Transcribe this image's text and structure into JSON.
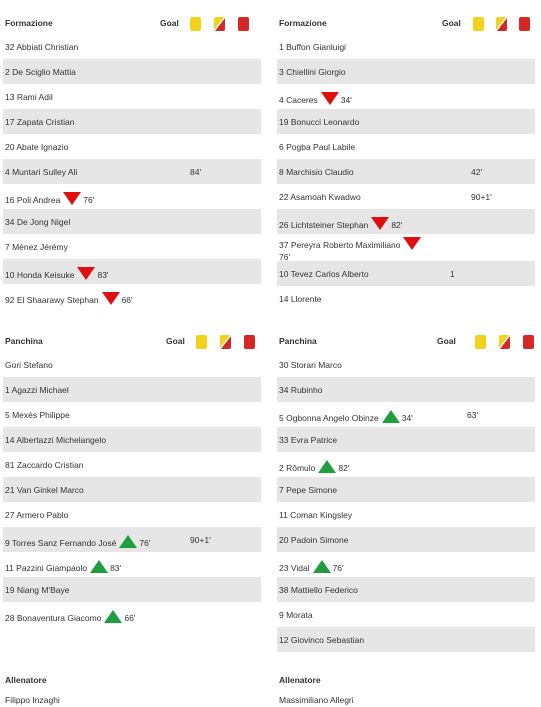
{
  "labels": {
    "formation": "Formazione",
    "bench": "Panchina",
    "goal": "Goal",
    "coach": "Allenatore"
  },
  "colors": {
    "yellow_card": "#f2d21b",
    "red_card": "#d62727",
    "sub_out": "#e00f0f",
    "sub_in": "#1e9e3e",
    "stripe": "#e6e6e6"
  },
  "icons": {
    "yellow_card": "yellow-card-icon",
    "second_yellow": "second-yellow-card-icon",
    "red_card": "red-card-icon",
    "sub_out": "substitution-out-icon",
    "sub_in": "substitution-in-icon"
  },
  "home": {
    "formation": [
      {
        "name": "32 Abbiati Christian"
      },
      {
        "name": "2 De Sciglio Mattia"
      },
      {
        "name": "13 Rami Adil"
      },
      {
        "name": "17 Zapata Cristian"
      },
      {
        "name": "20 Abate Ignazio"
      },
      {
        "name": "4 Muntari Sulley Ali",
        "yellow": "84'"
      },
      {
        "name": "16 Poli Andrea",
        "sub_out": "76'"
      },
      {
        "name": "34 De Jong Nigel"
      },
      {
        "name": "7 Ménez Jérémy"
      },
      {
        "name": "10 Honda Keisuke",
        "sub_out": "83'"
      },
      {
        "name": "92 El Shaarawy Stephan",
        "sub_out": "66'"
      }
    ],
    "bench": [
      {
        "name": "Gori Stefano"
      },
      {
        "name": "1 Agazzi Michael"
      },
      {
        "name": "5 Mexès Philippe"
      },
      {
        "name": "14 Albertazzi Michelangelo"
      },
      {
        "name": "81 Zaccardo Cristian"
      },
      {
        "name": "21 Van Ginkel Marco"
      },
      {
        "name": "27 Armero Pablo"
      },
      {
        "name": "9 Torres Sanz Fernando José",
        "sub_in": "76'",
        "yellow": "90+1'"
      },
      {
        "name": "11 Pazzini Giampaolo",
        "sub_in": "83'"
      },
      {
        "name": "19 Niang M'Baye"
      },
      {
        "name": "28 Bonaventura Giacomo",
        "sub_in": "66'"
      }
    ],
    "coach": "Filippo Inzaghi"
  },
  "away": {
    "formation": [
      {
        "name": "1 Buffon Gianluigi"
      },
      {
        "name": "3 Chiellini Giorgio"
      },
      {
        "name": "4 Caceres",
        "sub_out": "34'"
      },
      {
        "name": "19 Bonucci Leonardo"
      },
      {
        "name": "6 Pogba Paul Labile"
      },
      {
        "name": "8 Marchisio Claudio",
        "yellow": "42'"
      },
      {
        "name": "22 Asamoah Kwadwo",
        "yellow": "90+1'"
      },
      {
        "name": "26 Lichtsteiner Stephan",
        "sub_out": "82'"
      },
      {
        "name": "37 Pereyra Roberto Maximiliano",
        "sub_out": "76'"
      },
      {
        "name": "10 Tevez Carlos Alberto",
        "goal": "1"
      },
      {
        "name": "14 Llorente"
      }
    ],
    "bench": [
      {
        "name": "30 Storari Marco"
      },
      {
        "name": "34 Rubinho"
      },
      {
        "name": "5 Ogbonna Angelo Obinze",
        "sub_in": "34'",
        "yellow": "63'"
      },
      {
        "name": "33 Evra Patrice"
      },
      {
        "name": "2 Rômulo",
        "sub_in": "82'"
      },
      {
        "name": "7 Pepe Simone"
      },
      {
        "name": "11 Coman Kingsley"
      },
      {
        "name": "20 Padoin Simone"
      },
      {
        "name": "23 Vidal",
        "sub_in": "76'"
      },
      {
        "name": "38 Mattiello Federico"
      },
      {
        "name": "9 Morata"
      },
      {
        "name": "12 Giovinco Sebastian"
      }
    ],
    "coach": "Massimiliano Allegri"
  }
}
